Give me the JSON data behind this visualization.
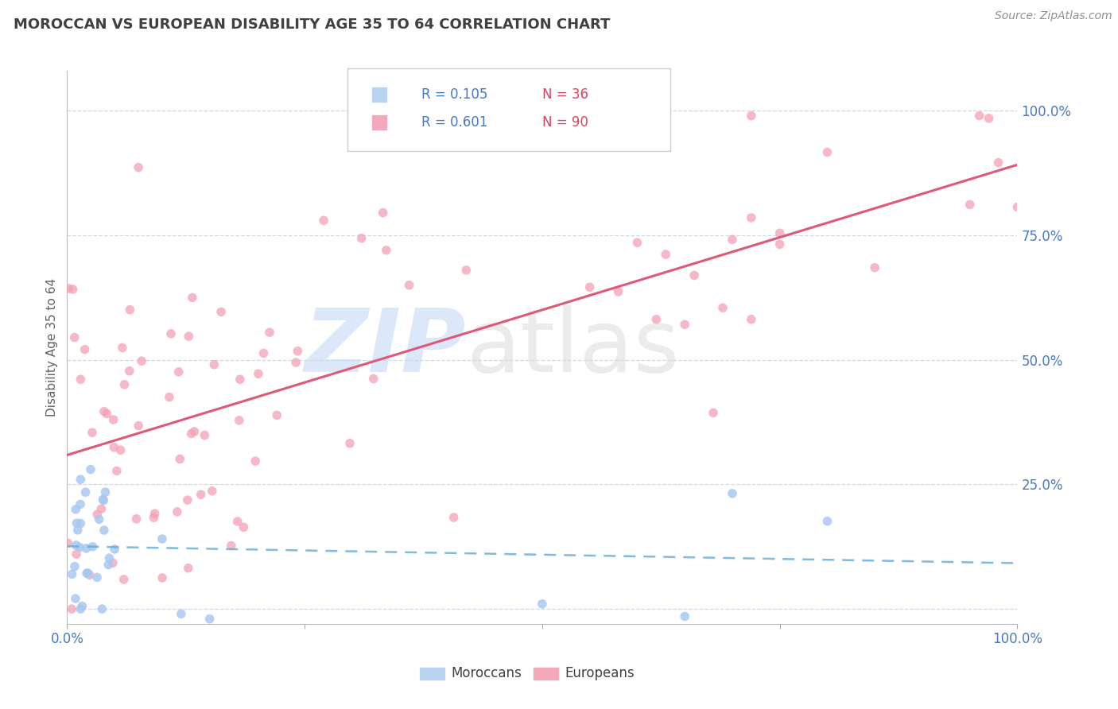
{
  "title": "MOROCCAN VS EUROPEAN DISABILITY AGE 35 TO 64 CORRELATION CHART",
  "source": "Source: ZipAtlas.com",
  "ylabel": "Disability Age 35 to 64",
  "xlim": [
    0,
    1.0
  ],
  "ylim": [
    -0.03,
    1.08
  ],
  "moroccan_R": 0.105,
  "moroccan_N": 36,
  "european_R": 0.601,
  "european_N": 90,
  "moroccan_color": "#a8c8f0",
  "european_color": "#f4a0b4",
  "trend_moroccan_color": "#6aaed6",
  "trend_european_color": "#e05878",
  "background_color": "#ffffff",
  "grid_color": "#c8d4e8",
  "title_color": "#404040",
  "axis_color": "#4878c0",
  "legend_moroccan_color": "#b8d4f0",
  "legend_european_color": "#f4a8bc"
}
